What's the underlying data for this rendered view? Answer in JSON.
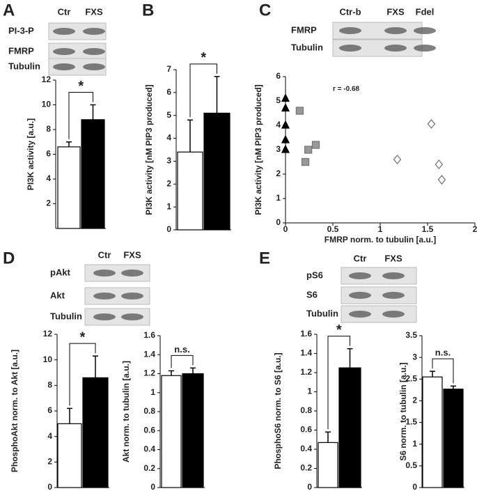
{
  "chart_data": [
    {
      "type": "bar",
      "panel": "A",
      "blot": {
        "lanes": [
          "Ctr",
          "FXS"
        ],
        "rows": [
          "PI-3-P",
          "FMRP",
          "Tubulin"
        ]
      },
      "ylabel": "PI3K activity [a.u.]",
      "categories": [
        null,
        null
      ],
      "values": [
        6.6,
        8.8
      ],
      "errors": [
        0.4,
        1.2
      ],
      "colors": [
        "#ffffff",
        "#000000"
      ],
      "ylim": [
        0,
        12
      ],
      "yticks": [
        2,
        4,
        6,
        8,
        10,
        12
      ],
      "annotation": "*"
    },
    {
      "type": "bar",
      "panel": "B",
      "ylabel": "PI3K activity [nM PIP3 produced]",
      "categories": [
        null,
        null
      ],
      "values": [
        3.4,
        5.1
      ],
      "errors": [
        1.4,
        1.6
      ],
      "colors": [
        "#ffffff",
        "#000000"
      ],
      "ylim": [
        0,
        7
      ],
      "yticks": [
        0,
        1,
        2,
        3,
        4,
        5,
        6,
        7
      ],
      "annotation": "*"
    },
    {
      "type": "scatter",
      "panel": "C",
      "blot": {
        "lanes": [
          "Ctr-b",
          "FXS",
          "Fdel"
        ],
        "rows": [
          "FMRP",
          "Tubulin"
        ]
      },
      "xlabel": "FMRP norm. to tubulin [a.u.]",
      "ylabel": "PI3K activity [nM PIP3 produced]",
      "annotation": "r = -0.68",
      "xlim": [
        0,
        2
      ],
      "xticks": [
        0,
        0.5,
        1,
        1.5,
        2
      ],
      "ylim": [
        0,
        6
      ],
      "yticks": [
        0,
        1,
        2,
        3,
        4,
        5,
        6
      ],
      "series": [
        {
          "marker": "triangle",
          "color": "#000000",
          "x": [
            0,
            0,
            0,
            0,
            0
          ],
          "values": [
            5.1,
            4.7,
            4.0,
            3.4,
            3.0
          ]
        },
        {
          "marker": "square",
          "color": "#999999",
          "x": [
            0.15,
            0.24,
            0.21,
            0.32
          ],
          "values": [
            4.6,
            3.0,
            2.5,
            3.2
          ]
        },
        {
          "marker": "diamond",
          "color": "#ffffff",
          "x": [
            1.54,
            1.18,
            1.62,
            1.65
          ],
          "values": [
            4.06,
            2.6,
            2.4,
            1.77
          ]
        }
      ]
    },
    {
      "type": "bar",
      "panel": "D",
      "blot": {
        "lanes": [
          "Ctr",
          "FXS"
        ],
        "rows": [
          "pAkt",
          "Akt",
          "Tubulin"
        ]
      },
      "ylabel": "PhosphoAkt norm. to Akt [a.u.]",
      "categories": [
        null,
        null
      ],
      "values": [
        5.0,
        8.6
      ],
      "errors": [
        1.2,
        1.7
      ],
      "colors": [
        "#ffffff",
        "#000000"
      ],
      "ylim": [
        0,
        12
      ],
      "yticks": [
        0,
        2,
        4,
        6,
        8,
        10,
        12
      ],
      "annotation": "*"
    },
    {
      "type": "bar",
      "ylabel": "Akt norm. to tubulin [a.u.]",
      "categories": [
        null,
        null
      ],
      "values": [
        1.18,
        1.2
      ],
      "errors": [
        0.05,
        0.06
      ],
      "colors": [
        "#ffffff",
        "#000000"
      ],
      "ylim": [
        0,
        1.6
      ],
      "yticks": [
        0,
        0.2,
        0.4,
        0.6,
        0.8,
        1,
        1.2,
        1.4,
        1.6
      ],
      "annotation": "n.s."
    },
    {
      "type": "bar",
      "panel": "E",
      "blot": {
        "lanes": [
          "Ctr",
          "FXS"
        ],
        "rows": [
          "pS6",
          "S6",
          "Tubulin"
        ]
      },
      "ylabel": "PhosphoS6 norm. to S6 [a.u.]",
      "categories": [
        null,
        null
      ],
      "values": [
        0.47,
        1.25
      ],
      "errors": [
        0.11,
        0.2
      ],
      "colors": [
        "#ffffff",
        "#000000"
      ],
      "ylim": [
        0,
        1.6
      ],
      "yticks": [
        0,
        0.2,
        0.4,
        0.6,
        0.8,
        1,
        1.2,
        1.4,
        1.6
      ],
      "annotation": "*"
    },
    {
      "type": "bar",
      "ylabel": "S6 norm. to tubulin [a.u.]",
      "categories": [
        null,
        null
      ],
      "values": [
        2.55,
        2.27
      ],
      "errors": [
        0.13,
        0.07
      ],
      "colors": [
        "#ffffff",
        "#000000"
      ],
      "ylim": [
        0,
        3.5
      ],
      "yticks": [
        0,
        0.5,
        1,
        1.5,
        2,
        2.5,
        3,
        3.5
      ],
      "annotation": "n.s."
    }
  ]
}
